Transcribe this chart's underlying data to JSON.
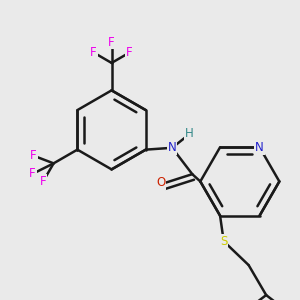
{
  "background_color": "#eaeaea",
  "bond_color": "#1a1a1a",
  "bond_width": 1.8,
  "atom_colors": {
    "F": "#ee00ee",
    "N": "#2222cc",
    "O": "#cc2200",
    "S": "#cccc00",
    "H": "#338888",
    "C": "#1a1a1a"
  },
  "font_size": 8.5
}
